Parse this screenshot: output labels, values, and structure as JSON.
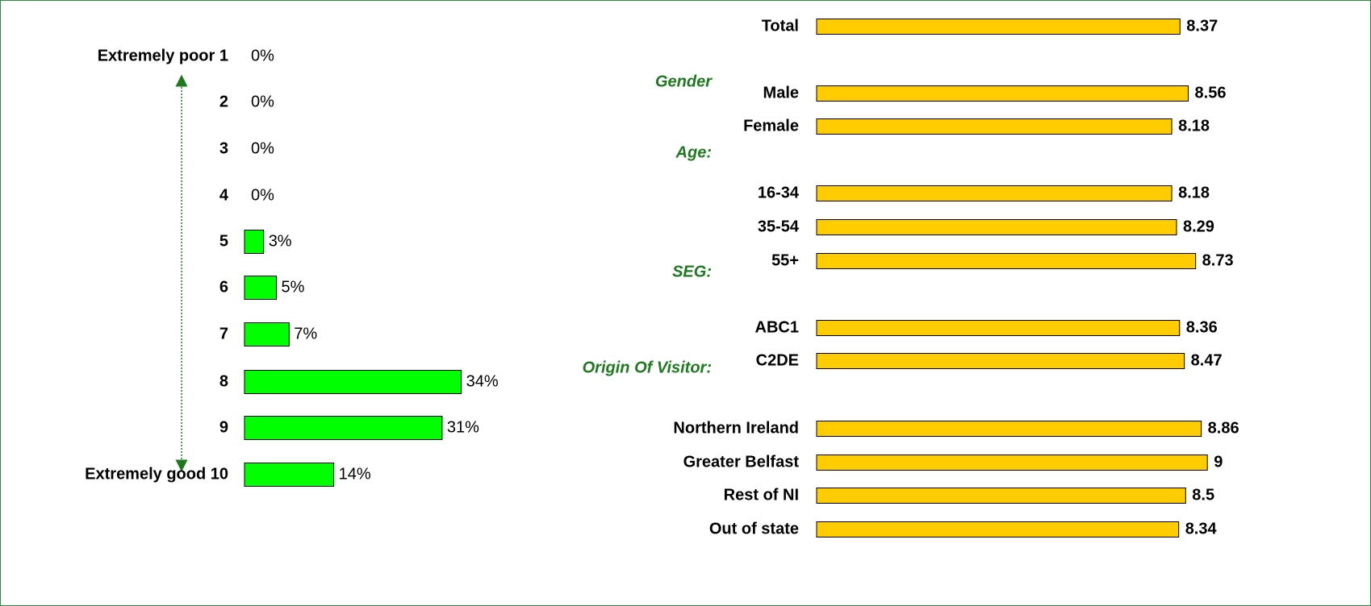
{
  "chart_data": [
    {
      "type": "bar",
      "orientation": "horizontal",
      "color": "#00ff00",
      "categories": [
        "Extremely poor 1",
        "2",
        "3",
        "4",
        "5",
        "6",
        "7",
        "8",
        "9",
        "Extremely good 10"
      ],
      "values": [
        0,
        0,
        0,
        0,
        3,
        5,
        7,
        34,
        31,
        14
      ],
      "value_labels": [
        "0%",
        "0%",
        "0%",
        "0%",
        "3%",
        "5%",
        "7%",
        "34%",
        "31%",
        "14%"
      ]
    },
    {
      "type": "bar",
      "orientation": "horizontal",
      "color": "#ffcc00",
      "categories": [
        "Total",
        "Male",
        "Female",
        "16-34",
        "35-54",
        "55+",
        "ABC1",
        "C2DE",
        "Northern Ireland",
        "Greater Belfast",
        "Rest of NI",
        "Out of state"
      ],
      "values": [
        8.37,
        8.56,
        8.18,
        8.18,
        8.29,
        8.73,
        8.36,
        8.47,
        8.86,
        9,
        8.5,
        8.34
      ],
      "annotations": [
        "Gender",
        "Age:",
        "SEG:",
        "Origin Of Visitor:"
      ]
    }
  ]
}
